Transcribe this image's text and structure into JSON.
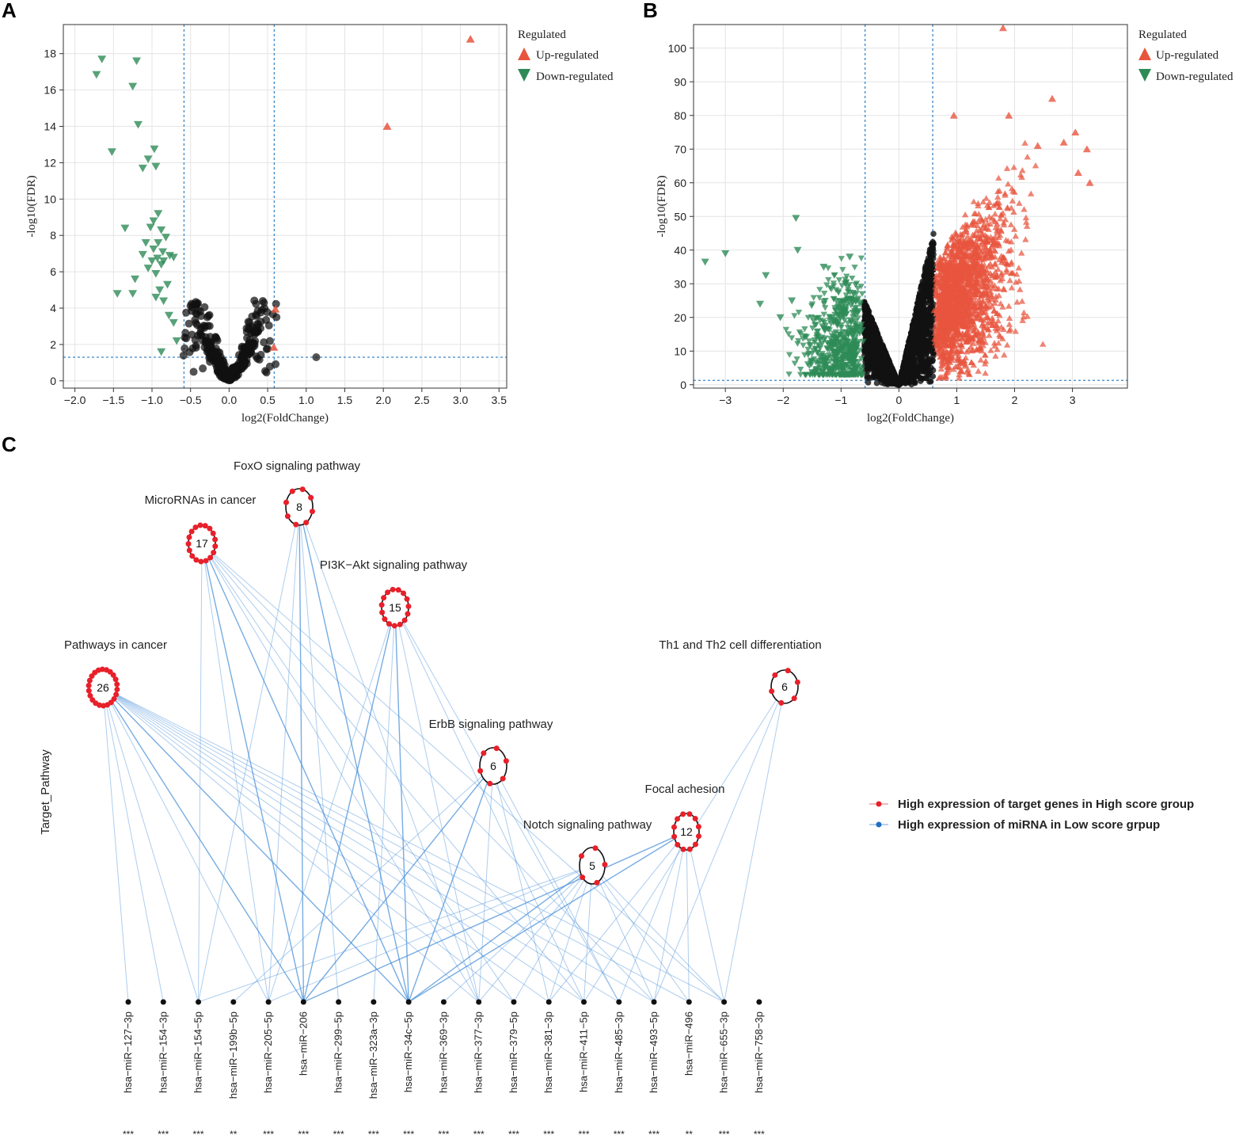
{
  "figure": {
    "panels": [
      "A",
      "B",
      "C"
    ]
  },
  "colors": {
    "up": "#e8553e",
    "down": "#2e8b57",
    "ns": "#111111",
    "threshold": "#3a86c8",
    "edge": "#4a90d9",
    "gene": "#e8202a"
  },
  "chart_data": [
    {
      "panel": "A",
      "type": "scatter",
      "xlabel": "log2(FoldChange)",
      "ylabel": "-log10(FDR)",
      "xlim": [
        -2.15,
        3.6
      ],
      "ylim": [
        -0.4,
        19.6
      ],
      "xticks": [
        -2.0,
        -1.5,
        -1.0,
        -0.5,
        0.0,
        0.5,
        1.0,
        1.5,
        2.0,
        2.5,
        3.0,
        3.5
      ],
      "xtick_labels": [
        "−2.0",
        "−1.5",
        "−1.0",
        "−0.5",
        "0.0",
        "0.5",
        "1.0",
        "1.5",
        "2.0",
        "2.5",
        "3.0",
        "3.5"
      ],
      "yticks": [
        0,
        2,
        4,
        6,
        8,
        10,
        12,
        14,
        16,
        18
      ],
      "ytick_labels": [
        "0",
        "2",
        "4",
        "6",
        "8",
        "10",
        "12",
        "14",
        "16",
        "18"
      ],
      "thresholds": {
        "x": [
          -0.585,
          0.585
        ],
        "y": 1.3
      },
      "legend": {
        "title": "Regulated",
        "items": [
          "Up-regulated",
          "Down-regulated"
        ],
        "position": "right"
      },
      "series": [
        {
          "name": "Up-regulated",
          "points": [
            [
              3.13,
              18.8
            ],
            [
              2.05,
              14.0
            ],
            [
              0.6,
              3.95
            ],
            [
              0.58,
              1.85
            ]
          ]
        },
        {
          "name": "Down-regulated",
          "points": [
            [
              -1.65,
              17.7
            ],
            [
              -1.2,
              17.6
            ],
            [
              -1.72,
              16.85
            ],
            [
              -1.25,
              16.2
            ],
            [
              -1.18,
              14.1
            ],
            [
              -1.52,
              12.6
            ],
            [
              -0.97,
              12.75
            ],
            [
              -1.05,
              12.2
            ],
            [
              -1.12,
              11.7
            ],
            [
              -0.95,
              11.8
            ],
            [
              -1.35,
              8.4
            ],
            [
              -0.92,
              9.2
            ],
            [
              -0.98,
              8.8
            ],
            [
              -1.02,
              8.45
            ],
            [
              -0.88,
              8.3
            ],
            [
              -0.82,
              7.9
            ],
            [
              -1.08,
              7.6
            ],
            [
              -0.92,
              7.6
            ],
            [
              -0.98,
              7.25
            ],
            [
              -0.86,
              7.1
            ],
            [
              -1.12,
              6.95
            ],
            [
              -0.77,
              6.9
            ],
            [
              -0.93,
              6.75
            ],
            [
              -1.0,
              6.6
            ],
            [
              -0.85,
              6.6
            ],
            [
              -0.72,
              6.8
            ],
            [
              -0.88,
              6.4
            ],
            [
              -1.05,
              6.2
            ],
            [
              -0.95,
              5.9
            ],
            [
              -1.22,
              5.6
            ],
            [
              -0.8,
              5.3
            ],
            [
              -0.9,
              5.0
            ],
            [
              -1.45,
              4.8
            ],
            [
              -1.25,
              4.8
            ],
            [
              -0.95,
              4.6
            ],
            [
              -0.85,
              4.4
            ],
            [
              -0.78,
              3.6
            ],
            [
              -0.72,
              3.2
            ],
            [
              -0.68,
              2.2
            ],
            [
              -0.88,
              1.6
            ]
          ]
        }
      ]
    },
    {
      "panel": "B",
      "type": "scatter",
      "xlabel": "log2(FoldChange)",
      "ylabel": "-log10(FDR)",
      "xlim": [
        -3.55,
        3.95
      ],
      "ylim": [
        -1,
        107
      ],
      "xticks": [
        -3,
        -2,
        -1,
        0,
        1,
        2,
        3
      ],
      "xtick_labels": [
        "−3",
        "−2",
        "−1",
        "0",
        "1",
        "2",
        "3"
      ],
      "yticks": [
        0,
        10,
        20,
        30,
        40,
        50,
        60,
        70,
        80,
        90,
        100
      ],
      "ytick_labels": [
        "0",
        "10",
        "20",
        "30",
        "40",
        "50",
        "60",
        "70",
        "80",
        "90",
        "100"
      ],
      "thresholds": {
        "x": [
          -0.585,
          0.585
        ],
        "y": 1.3
      },
      "legend": {
        "title": "Regulated",
        "items": [
          "Up-regulated",
          "Down-regulated"
        ],
        "position": "right"
      },
      "series": [
        {
          "name": "Up-regulated",
          "outliers": [
            [
              1.8,
              106
            ],
            [
              2.65,
              85
            ],
            [
              0.95,
              80
            ],
            [
              1.9,
              80
            ],
            [
              3.05,
              75
            ],
            [
              3.25,
              70
            ],
            [
              2.85,
              72
            ],
            [
              3.3,
              60
            ],
            [
              3.1,
              63
            ],
            [
              2.4,
              71
            ]
          ]
        },
        {
          "name": "Down-regulated",
          "outliers": [
            [
              -3.35,
              36.5
            ],
            [
              -3.0,
              39
            ],
            [
              -1.78,
              49.5
            ],
            [
              -1.75,
              40
            ],
            [
              -2.3,
              32.5
            ],
            [
              -2.4,
              24
            ],
            [
              -1.85,
              25
            ],
            [
              -2.05,
              20
            ],
            [
              -1.3,
              35
            ],
            [
              -0.85,
              38
            ]
          ]
        }
      ]
    },
    {
      "panel": "C",
      "type": "network",
      "ylabel": "Target_Pathway",
      "pathways": [
        {
          "name": "FoxO signaling pathway",
          "count": "8"
        },
        {
          "name": "MicroRNAs in cancer",
          "count": "17"
        },
        {
          "name": "PI3K−Akt signaling pathway",
          "count": "15"
        },
        {
          "name": "Pathways in cancer",
          "count": "26"
        },
        {
          "name": "Th1 and Th2 cell differentiation",
          "count": "6"
        },
        {
          "name": "ErbB signaling pathway",
          "count": "6"
        },
        {
          "name": "Focal achesion",
          "count": "12"
        },
        {
          "name": "Notch signaling pathway",
          "count": "5"
        }
      ],
      "mirnas": [
        {
          "name": "hsa−miR−127−3p",
          "sig": "***"
        },
        {
          "name": "hsa−miR−154−3p",
          "sig": "***"
        },
        {
          "name": "hsa−miR−154−5p",
          "sig": "***"
        },
        {
          "name": "hsa−miR−199b−5p",
          "sig": "**"
        },
        {
          "name": "hsa−miR−205−5p",
          "sig": "***"
        },
        {
          "name": "hsa−miR−206",
          "sig": "***"
        },
        {
          "name": "hsa−miR−299−5p",
          "sig": "***"
        },
        {
          "name": "hsa−miR−323a−3p",
          "sig": "***"
        },
        {
          "name": "hsa−miR−34c−5p",
          "sig": "***"
        },
        {
          "name": "hsa−miR−369−3p",
          "sig": "***"
        },
        {
          "name": "hsa−miR−377−3p",
          "sig": "***"
        },
        {
          "name": "hsa−miR−379−5p",
          "sig": "***"
        },
        {
          "name": "hsa−miR−381−3p",
          "sig": "***"
        },
        {
          "name": "hsa−miR−411−5p",
          "sig": "***"
        },
        {
          "name": "hsa−miR−485−3p",
          "sig": "***"
        },
        {
          "name": "hsa−miR−493−5p",
          "sig": "***"
        },
        {
          "name": "hsa−miR−496",
          "sig": "**"
        },
        {
          "name": "hsa−miR−655−3p",
          "sig": "***"
        },
        {
          "name": "hsa−miR−758−3p",
          "sig": "***"
        }
      ],
      "legend": {
        "items": [
          "High expression of target genes in High score group",
          "High  expression of miRNA in Low score grpup"
        ],
        "position": "right"
      }
    }
  ]
}
